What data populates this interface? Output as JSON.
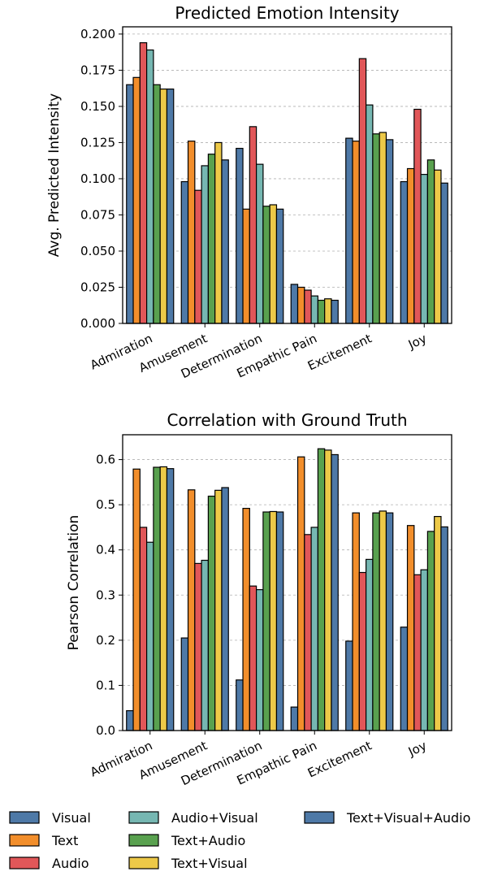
{
  "colors": {
    "Visual": "#4e79a7",
    "Text": "#f28e2b",
    "Audio": "#e15759",
    "Audio+Visual": "#76b7b2",
    "Text+Audio": "#59a14f",
    "Text+Visual": "#edc948",
    "Text+Visual+Audio": "#4e79a7"
  },
  "legend": [
    "Visual",
    "Text",
    "Audio",
    "Audio+Visual",
    "Text+Audio",
    "Text+Visual",
    "Text+Visual+Audio"
  ],
  "chart_data": [
    {
      "type": "bar",
      "title": "Predicted Emotion Intensity",
      "xlabel": "",
      "ylabel": "Avg. Predicted Intensity",
      "ylim": [
        0,
        0.205
      ],
      "yticks": [
        "0.000",
        "0.025",
        "0.050",
        "0.075",
        "0.100",
        "0.125",
        "0.150",
        "0.175",
        "0.200"
      ],
      "grid": "horizontal dashed",
      "categories": [
        "Admiration",
        "Amusement",
        "Determination",
        "Empathic Pain",
        "Excitement",
        "Joy"
      ],
      "series": [
        {
          "name": "Visual",
          "values": [
            0.165,
            0.098,
            0.121,
            0.027,
            0.128,
            0.098
          ]
        },
        {
          "name": "Text",
          "values": [
            0.17,
            0.126,
            0.079,
            0.025,
            0.126,
            0.107
          ]
        },
        {
          "name": "Audio",
          "values": [
            0.194,
            0.092,
            0.136,
            0.023,
            0.183,
            0.148
          ]
        },
        {
          "name": "Audio+Visual",
          "values": [
            0.189,
            0.109,
            0.11,
            0.019,
            0.151,
            0.103
          ]
        },
        {
          "name": "Text+Audio",
          "values": [
            0.165,
            0.117,
            0.081,
            0.016,
            0.131,
            0.113
          ]
        },
        {
          "name": "Text+Visual",
          "values": [
            0.162,
            0.125,
            0.082,
            0.017,
            0.132,
            0.106
          ]
        },
        {
          "name": "Text+Visual+Audio",
          "values": [
            0.162,
            0.113,
            0.079,
            0.016,
            0.127,
            0.097
          ]
        }
      ]
    },
    {
      "type": "bar",
      "title": "Correlation with Ground Truth",
      "xlabel": "",
      "ylabel": "Pearson Correlation",
      "ylim": [
        0,
        0.655
      ],
      "yticks": [
        "0.0",
        "0.1",
        "0.2",
        "0.3",
        "0.4",
        "0.5",
        "0.6"
      ],
      "grid": "horizontal dashed",
      "categories": [
        "Admiration",
        "Amusement",
        "Determination",
        "Empathic Pain",
        "Excitement",
        "Joy"
      ],
      "series": [
        {
          "name": "Visual",
          "values": [
            0.044,
            0.205,
            0.112,
            0.052,
            0.198,
            0.229
          ]
        },
        {
          "name": "Text",
          "values": [
            0.579,
            0.533,
            0.492,
            0.606,
            0.482,
            0.454
          ]
        },
        {
          "name": "Audio",
          "values": [
            0.45,
            0.37,
            0.32,
            0.434,
            0.35,
            0.345
          ]
        },
        {
          "name": "Audio+Visual",
          "values": [
            0.417,
            0.377,
            0.312,
            0.45,
            0.379,
            0.356
          ]
        },
        {
          "name": "Text+Audio",
          "values": [
            0.583,
            0.519,
            0.484,
            0.624,
            0.482,
            0.441
          ]
        },
        {
          "name": "Text+Visual",
          "values": [
            0.584,
            0.532,
            0.485,
            0.621,
            0.486,
            0.474
          ]
        },
        {
          "name": "Text+Visual+Audio",
          "values": [
            0.58,
            0.538,
            0.484,
            0.611,
            0.482,
            0.451
          ]
        }
      ]
    }
  ]
}
